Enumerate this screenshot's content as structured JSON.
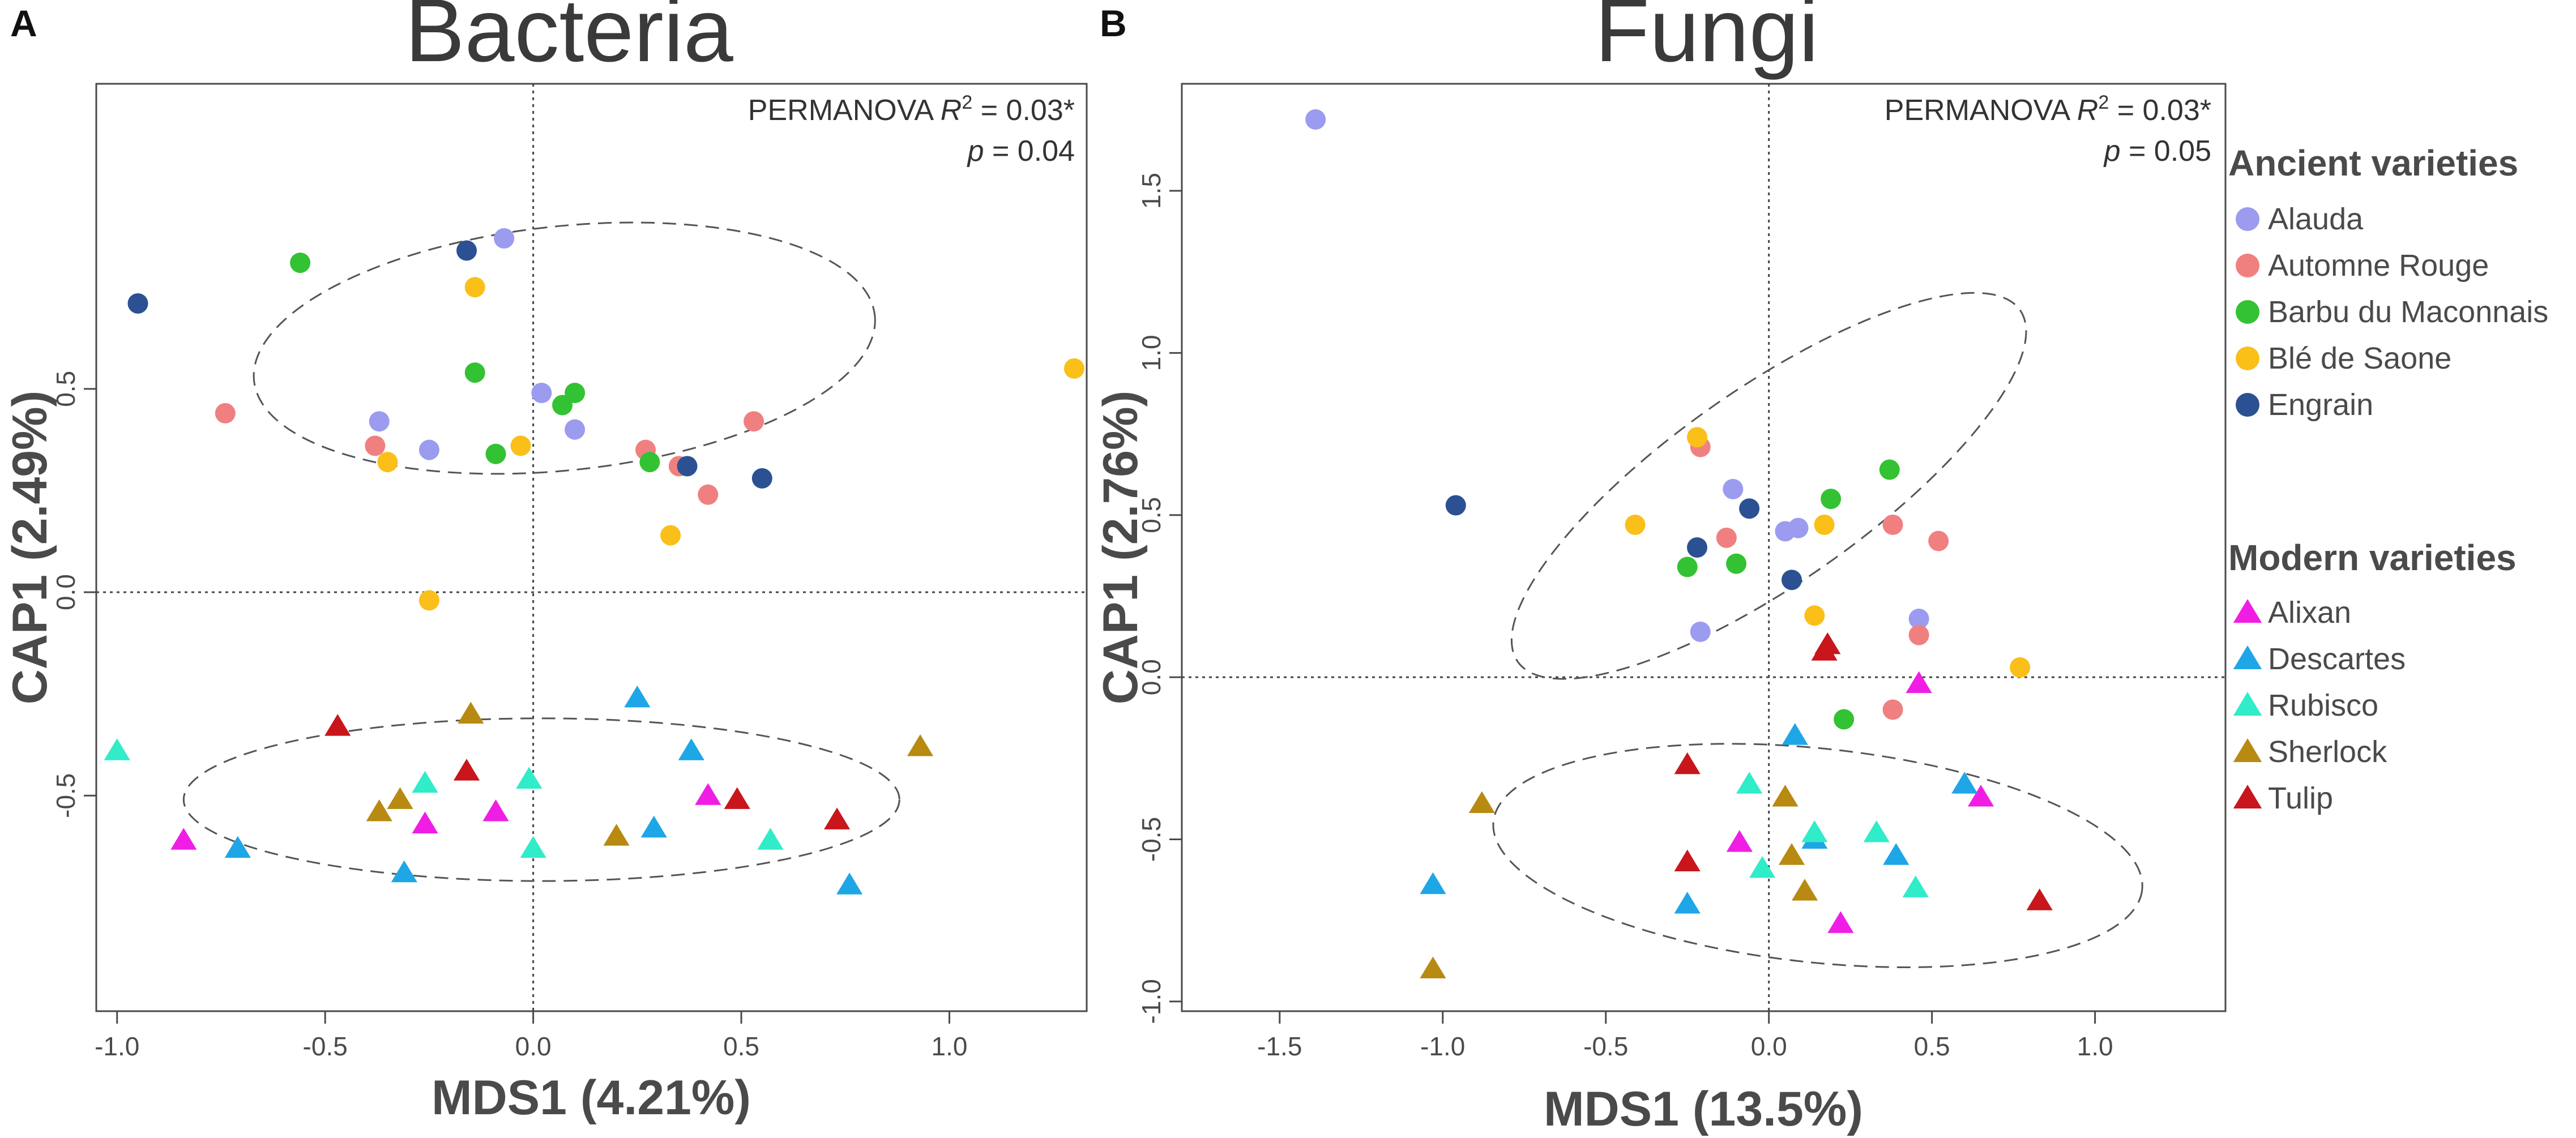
{
  "colors": {
    "Alauda": "#9b9bef",
    "Automne Rouge": "#f08080",
    "Barbu du Maconnais": "#33c233",
    "Blé de Saone": "#fbbf1a",
    "Engrain": "#2c5192",
    "Alixan": "#f01ee4",
    "Descartes": "#1ea6e6",
    "Rubisco": "#30ecc8",
    "Sherlock": "#b88a12",
    "Tulip": "#c8161c",
    "axis": "#4a4a4a",
    "title": "#3a3a3a"
  },
  "legend": {
    "ancient_title": "Ancient varieties",
    "ancient": [
      "Alauda",
      "Automne Rouge",
      "Barbu du Maconnais",
      "Blé de Saone",
      "Engrain"
    ],
    "modern_title": "Modern varieties",
    "modern": [
      "Alixan",
      "Descartes",
      "Rubisco",
      "Sherlock",
      "Tulip"
    ]
  },
  "chart_data": [
    {
      "type": "scatter",
      "panel": "A",
      "title": "Bacteria",
      "xlabel": "MDS1 (4.21%)",
      "ylabel": "CAP1 (2.49%)",
      "annotation": {
        "line1_prefix": "PERMANOVA ",
        "r2_symbol": "R",
        "r2_sup": "2",
        "line1_value": " = 0.03*",
        "p_symbol": "p",
        "line2_value": " =  0.04"
      },
      "xlim": [
        -1.05,
        1.33
      ],
      "ylim": [
        -1.03,
        1.25
      ],
      "xticks": [
        "-1.0",
        "-0.5",
        "0.0",
        "0.5",
        "1.0"
      ],
      "xtick_values": [
        -1.0,
        -0.5,
        0.0,
        0.5,
        1.0
      ],
      "yticks": [
        "-0.5",
        "0.0",
        "0.5"
      ],
      "ytick_values": [
        -0.5,
        0.0,
        0.5
      ],
      "ellipses": [
        {
          "cx": 0.075,
          "cy": 0.6,
          "rx": 0.75,
          "ry": 0.3,
          "angle_deg": -6
        },
        {
          "cx": 0.02,
          "cy": -0.51,
          "rx": 0.86,
          "ry": 0.2,
          "angle_deg": 0
        }
      ],
      "series": [
        {
          "name": "Alauda",
          "marker": "circle",
          "points": [
            [
              -0.07,
              0.87
            ],
            [
              -0.37,
              0.42
            ],
            [
              -0.25,
              0.35
            ],
            [
              0.02,
              0.49
            ],
            [
              0.1,
              0.4
            ]
          ]
        },
        {
          "name": "Automne Rouge",
          "marker": "circle",
          "points": [
            [
              -0.74,
              0.44
            ],
            [
              -0.38,
              0.36
            ],
            [
              0.27,
              0.35
            ],
            [
              0.35,
              0.31
            ],
            [
              0.42,
              0.24
            ],
            [
              0.53,
              0.42
            ]
          ]
        },
        {
          "name": "Barbu du Maconnais",
          "marker": "circle",
          "points": [
            [
              -0.56,
              0.81
            ],
            [
              -0.14,
              0.54
            ],
            [
              -0.09,
              0.34
            ],
            [
              0.07,
              0.46
            ],
            [
              0.1,
              0.49
            ],
            [
              0.28,
              0.32
            ]
          ]
        },
        {
          "name": "Blé de Saone",
          "marker": "circle",
          "points": [
            [
              -0.14,
              0.75
            ],
            [
              -0.35,
              0.32
            ],
            [
              -0.03,
              0.36
            ],
            [
              0.33,
              0.14
            ],
            [
              -0.25,
              -0.02
            ],
            [
              1.3,
              0.55
            ]
          ]
        },
        {
          "name": "Engrain",
          "marker": "circle",
          "points": [
            [
              -0.95,
              0.71
            ],
            [
              -0.16,
              0.84
            ],
            [
              0.37,
              0.31
            ],
            [
              0.55,
              0.28
            ]
          ]
        },
        {
          "name": "Alixan",
          "marker": "triangle",
          "points": [
            [
              -0.84,
              -0.61
            ],
            [
              -0.26,
              -0.57
            ],
            [
              -0.09,
              -0.54
            ],
            [
              0.42,
              -0.5
            ]
          ]
        },
        {
          "name": "Descartes",
          "marker": "triangle",
          "points": [
            [
              -0.71,
              -0.63
            ],
            [
              -0.31,
              -0.69
            ],
            [
              0.25,
              -0.26
            ],
            [
              0.38,
              -0.39
            ],
            [
              0.29,
              -0.58
            ],
            [
              0.76,
              -0.72
            ]
          ]
        },
        {
          "name": "Rubisco",
          "marker": "triangle",
          "points": [
            [
              -1.0,
              -0.39
            ],
            [
              -0.26,
              -0.47
            ],
            [
              -0.01,
              -0.46
            ],
            [
              0.0,
              -0.63
            ],
            [
              0.57,
              -0.61
            ]
          ]
        },
        {
          "name": "Sherlock",
          "marker": "triangle",
          "points": [
            [
              -0.37,
              -0.54
            ],
            [
              -0.32,
              -0.51
            ],
            [
              -0.15,
              -0.3
            ],
            [
              0.2,
              -0.6
            ],
            [
              0.93,
              -0.38
            ]
          ]
        },
        {
          "name": "Tulip",
          "marker": "triangle",
          "points": [
            [
              -0.47,
              -0.33
            ],
            [
              -0.16,
              -0.44
            ],
            [
              0.49,
              -0.51
            ],
            [
              0.73,
              -0.56
            ]
          ]
        }
      ]
    },
    {
      "type": "scatter",
      "panel": "B",
      "title": "Fungi",
      "xlabel": "MDS1 (13.5%)",
      "ylabel": "CAP1 (2.76%)",
      "annotation": {
        "line1_prefix": "PERMANOVA ",
        "r2_symbol": "R",
        "r2_sup": "2",
        "line1_value": " = 0.03*",
        "p_symbol": "p",
        "line2_value": " =  0.05"
      },
      "xlim": [
        -1.8,
        1.4
      ],
      "ylim": [
        -1.03,
        1.83
      ],
      "xticks": [
        "-1.5",
        "-1.0",
        "-0.5",
        "0.0",
        "0.5",
        "1.0"
      ],
      "xtick_values": [
        -1.5,
        -1.0,
        -0.5,
        0.0,
        0.5,
        1.0
      ],
      "yticks": [
        "-1.0",
        "-0.5",
        "0.0",
        "0.5",
        "1.0",
        "1.5"
      ],
      "ytick_values": [
        -1.0,
        -0.5,
        0.0,
        0.5,
        1.0,
        1.5
      ],
      "ellipses": [
        {
          "cx": 0.0,
          "cy": 0.59,
          "rx": 0.94,
          "ry": 0.3,
          "angle_deg": -35
        },
        {
          "cx": 0.15,
          "cy": -0.55,
          "rx": 1.0,
          "ry": 0.33,
          "angle_deg": 6
        }
      ],
      "series": [
        {
          "name": "Alauda",
          "marker": "circle",
          "points": [
            [
              -1.39,
              1.72
            ],
            [
              -0.11,
              0.58
            ],
            [
              0.05,
              0.45
            ],
            [
              0.09,
              0.46
            ],
            [
              0.46,
              0.18
            ],
            [
              -0.21,
              0.14
            ]
          ]
        },
        {
          "name": "Automne Rouge",
          "marker": "circle",
          "points": [
            [
              -0.21,
              0.71
            ],
            [
              -0.13,
              0.43
            ],
            [
              0.38,
              0.47
            ],
            [
              0.52,
              0.42
            ],
            [
              0.46,
              0.13
            ],
            [
              0.38,
              -0.1
            ]
          ]
        },
        {
          "name": "Barbu du Maconnais",
          "marker": "circle",
          "points": [
            [
              0.37,
              0.64
            ],
            [
              0.19,
              0.55
            ],
            [
              -0.25,
              0.34
            ],
            [
              -0.1,
              0.35
            ],
            [
              0.23,
              -0.13
            ]
          ]
        },
        {
          "name": "Blé de Saone",
          "marker": "circle",
          "points": [
            [
              -0.22,
              0.74
            ],
            [
              -0.41,
              0.47
            ],
            [
              0.17,
              0.47
            ],
            [
              0.14,
              0.19
            ],
            [
              0.77,
              0.03
            ]
          ]
        },
        {
          "name": "Engrain",
          "marker": "circle",
          "points": [
            [
              -0.96,
              0.53
            ],
            [
              -0.06,
              0.52
            ],
            [
              -0.22,
              0.4
            ],
            [
              0.07,
              0.3
            ]
          ]
        },
        {
          "name": "Alixan",
          "marker": "triangle",
          "points": [
            [
              0.46,
              -0.02
            ],
            [
              0.65,
              -0.37
            ],
            [
              -0.09,
              -0.51
            ],
            [
              0.22,
              -0.76
            ]
          ]
        },
        {
          "name": "Descartes",
          "marker": "triangle",
          "points": [
            [
              0.08,
              -0.18
            ],
            [
              0.6,
              -0.33
            ],
            [
              0.14,
              -0.5
            ],
            [
              0.39,
              -0.55
            ],
            [
              -1.03,
              -0.64
            ],
            [
              -0.25,
              -0.7
            ]
          ]
        },
        {
          "name": "Rubisco",
          "marker": "triangle",
          "points": [
            [
              -0.06,
              -0.33
            ],
            [
              0.33,
              -0.48
            ],
            [
              0.14,
              -0.48
            ],
            [
              -0.02,
              -0.59
            ],
            [
              0.45,
              -0.65
            ]
          ]
        },
        {
          "name": "Sherlock",
          "marker": "triangle",
          "points": [
            [
              -0.88,
              -0.39
            ],
            [
              0.05,
              -0.37
            ],
            [
              0.07,
              -0.55
            ],
            [
              0.11,
              -0.66
            ],
            [
              -1.03,
              -0.9
            ]
          ]
        },
        {
          "name": "Tulip",
          "marker": "triangle",
          "points": [
            [
              0.18,
              0.1
            ],
            [
              0.17,
              0.08
            ],
            [
              -0.25,
              -0.27
            ],
            [
              -0.25,
              -0.57
            ],
            [
              0.83,
              -0.69
            ]
          ]
        }
      ]
    }
  ]
}
